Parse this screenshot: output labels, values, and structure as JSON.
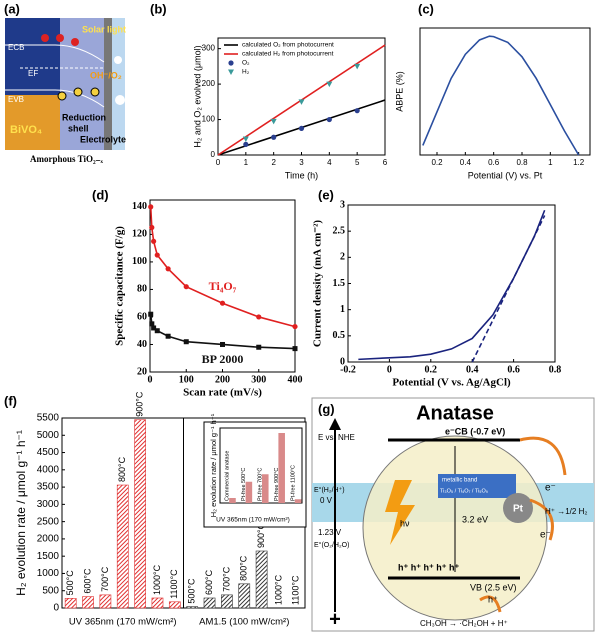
{
  "panels": [
    "(a)",
    "(b)",
    "(c)",
    "(d)",
    "(e)",
    "(f)",
    "(g)"
  ],
  "diagram_a": {
    "ecb": "ECB",
    "ef": "EF",
    "evb": "EVB",
    "bivo4": "BiVO₄",
    "shell": [
      "Reduction",
      "shell"
    ],
    "electrolyte": "Electrolyte",
    "light": "Solar light",
    "redox": "OH⁻/O₂",
    "amorphous": "Amorphous TiO₂₋ₓ"
  },
  "diagram_g": {
    "title": "Anatase",
    "axis_label": "E vs. NHE",
    "h2_potential": "E°(H₂/H⁺)",
    "zero": "0 V",
    "o2_level": "1.23 V",
    "o2_potential": "E°(O₂/H₂O)",
    "cb": "e⁻CB (-0.7 eV)",
    "metallic_band": "metallic band",
    "suboxides": "Ti₃O₅ / Ti₄O₇ / Ti₅O₉",
    "pt": "Pt",
    "reduction": "H⁺ →1/2 H₂",
    "photon": "hν",
    "gap": "3.2 eV",
    "vb": "VB (2.5 eV)",
    "holes": "h⁺  h⁺  h⁺ h⁺ h⁺",
    "hole": "h⁺",
    "electron": "e⁻",
    "oxidation": "CH₃OH → ·CH₂OH + H⁺",
    "plus": "+"
  },
  "chart_data": [
    {
      "type": "line",
      "xlabel": "Time (h)",
      "ylabel": "H₂ and O₂ evolved (μmol)",
      "xlim": [
        0,
        6
      ],
      "xticks": [
        0,
        1,
        2,
        3,
        4,
        5,
        6
      ],
      "ylim": [
        0,
        330
      ],
      "yticks": [
        0,
        100,
        200,
        300
      ],
      "legend": "upper left",
      "series": [
        {
          "name": "calculated O₂ from photocurrent",
          "color": "#000000",
          "style": "line",
          "x": [
            0,
            6
          ],
          "values": [
            0,
            155
          ]
        },
        {
          "name": "calculated H₂ from photocurrent",
          "color": "#e02020",
          "style": "line",
          "x": [
            0,
            6
          ],
          "values": [
            0,
            310
          ]
        },
        {
          "name": "O₂",
          "color": "#2a3f8f",
          "style": "marker",
          "marker": "circle",
          "x": [
            1,
            2,
            3,
            4,
            5
          ],
          "values": [
            30,
            50,
            75,
            100,
            125
          ]
        },
        {
          "name": "H₂",
          "color": "#3a9a9a",
          "style": "marker",
          "marker": "triangle-down",
          "x": [
            1,
            2,
            3,
            4,
            5
          ],
          "values": [
            45,
            95,
            150,
            200,
            250
          ]
        }
      ]
    },
    {
      "type": "line",
      "xlabel": "Potential (V) vs. Pt",
      "ylabel": "ABPE (%)",
      "xlim": [
        0.08,
        1.28
      ],
      "xticks": [
        0.2,
        0.4,
        0.6,
        0.8,
        1.0,
        1.2
      ],
      "ylim": [
        0,
        2.65
      ],
      "series": [
        {
          "color": "#2b4fa0",
          "style": "line",
          "x": [
            0.1,
            0.2,
            0.3,
            0.4,
            0.5,
            0.57,
            0.6,
            0.7,
            0.8,
            0.9,
            1.0,
            1.1,
            1.2
          ],
          "values": [
            0.2,
            0.9,
            1.6,
            2.1,
            2.4,
            2.48,
            2.47,
            2.35,
            2.05,
            1.6,
            1.05,
            0.5,
            0
          ]
        }
      ]
    },
    {
      "type": "line",
      "xlabel": "Scan rate (mV/s)",
      "ylabel": "Specific capacitance (F/g)",
      "xlim": [
        0,
        400
      ],
      "xticks": [
        0,
        100,
        200,
        300,
        400
      ],
      "ylim": [
        20,
        145
      ],
      "yticks": [
        20,
        40,
        60,
        80,
        100,
        120,
        140
      ],
      "legend": "inline",
      "series": [
        {
          "name": "Ti₄O₇",
          "color": "#e02020",
          "style": "line",
          "marker": "circle",
          "x": [
            2,
            5,
            10,
            20,
            50,
            100,
            200,
            300,
            400
          ],
          "values": [
            140,
            125,
            115,
            105,
            95,
            82,
            70,
            60,
            53
          ]
        },
        {
          "name": "BP 2000",
          "color": "#111111",
          "style": "line",
          "marker": "square",
          "x": [
            2,
            5,
            10,
            20,
            50,
            100,
            200,
            300,
            400
          ],
          "values": [
            62,
            55,
            52,
            50,
            46,
            42,
            40,
            38,
            37
          ]
        }
      ]
    },
    {
      "type": "line",
      "xlabel": "Potential (V vs. Ag/AgCl)",
      "ylabel": "Current density (mA cm⁻²)",
      "xlim": [
        -0.2,
        0.8
      ],
      "xticks": [
        -0.2,
        0,
        0.2,
        0.4,
        0.6,
        0.8
      ],
      "ylim": [
        0,
        3
      ],
      "yticks": [
        0,
        0.5,
        1,
        1.5,
        2,
        2.5,
        3
      ],
      "series": [
        {
          "color": "#1a237e",
          "style": "line",
          "x": [
            -0.15,
            0,
            0.1,
            0.2,
            0.3,
            0.4,
            0.5,
            0.6,
            0.7,
            0.75
          ],
          "values": [
            0.05,
            0.08,
            0.1,
            0.15,
            0.25,
            0.45,
            0.9,
            1.6,
            2.4,
            2.9
          ]
        },
        {
          "color": "#1a237e",
          "style": "line",
          "dash": true,
          "x": [
            0.4,
            0.75
          ],
          "values": [
            0,
            2.8
          ]
        }
      ]
    },
    {
      "type": "grouped-bar",
      "ylabel": "H₂ evolution rate / μmol g⁻¹ h⁻¹",
      "ylim": [
        0,
        5500
      ],
      "yticks": [
        0,
        500,
        1000,
        1500,
        2000,
        2500,
        3000,
        3500,
        4000,
        4500,
        5000,
        5500
      ],
      "groups": [
        {
          "name": "UV 365nm (170 mW/cm²)",
          "color": "#e03030",
          "categories": [
            "500°C",
            "600°C",
            "700°C",
            "800°C",
            "900°C",
            "1000°C",
            "1100°C"
          ],
          "values": [
            280,
            330,
            380,
            3560,
            5450,
            290,
            180
          ]
        },
        {
          "name": "AM1.5 (100 mW/cm²)",
          "color": "#333333",
          "categories": [
            "500°C",
            "600°C",
            "700°C",
            "800°C",
            "900°C",
            "1000°C",
            "1100°C"
          ],
          "values": [
            40,
            290,
            380,
            700,
            1650,
            0,
            0
          ]
        }
      ]
    },
    {
      "type": "bar",
      "ylabel": "H₂ evolution rate / μmol g⁻¹ h⁻¹",
      "xlabel": "UV 365nm (170 mW/cm²)",
      "ylim": [
        0,
        600
      ],
      "color": "#d98a8a",
      "categories": [
        "Commercial anatase",
        "Pt-free 500°C",
        "Pt-free 700°C",
        "Pt-free 900°C",
        "Pt-free 1100°C"
      ],
      "values": [
        40,
        170,
        230,
        560,
        30
      ]
    }
  ]
}
